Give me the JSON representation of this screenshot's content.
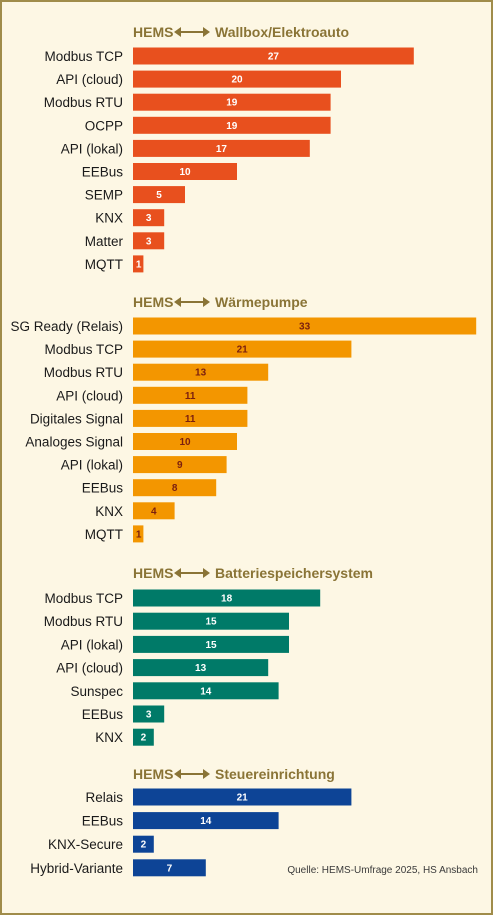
{
  "source": "Quelle: HEMS-Umfrage 2025, HS Ansbach",
  "chart_data": [
    {
      "type": "bar",
      "orientation": "horizontal",
      "title_left": "HEMS",
      "title_right": "Wallbox/Elektroauto",
      "color": "#e8501e",
      "label_color": "#ffffff",
      "categories": [
        "Modbus TCP",
        "API (cloud)",
        "Modbus RTU",
        "OCPP",
        "API (lokal)",
        "EEBus",
        "SEMP",
        "KNX",
        "Matter",
        "MQTT"
      ],
      "values": [
        27,
        20,
        19,
        19,
        17,
        10,
        5,
        3,
        3,
        1
      ]
    },
    {
      "type": "bar",
      "orientation": "horizontal",
      "title_left": "HEMS",
      "title_right": "Wärmepumpe",
      "color": "#f39600",
      "label_color": "#7a1f0f",
      "categories": [
        "SG Ready (Relais)",
        "Modbus TCP",
        "Modbus RTU",
        "API (cloud)",
        "Digitales Signal",
        "Analoges Signal",
        "API (lokal)",
        "EEBus",
        "KNX",
        "MQTT"
      ],
      "values": [
        33,
        21,
        13,
        11,
        11,
        10,
        9,
        8,
        4,
        1
      ]
    },
    {
      "type": "bar",
      "orientation": "horizontal",
      "title_left": "HEMS",
      "title_right": "Batteriespeichersystem",
      "color": "#007a68",
      "label_color": "#ffffff",
      "categories": [
        "Modbus TCP",
        "Modbus RTU",
        "API (lokal)",
        "API (cloud)",
        "Sunspec",
        "EEBus",
        "KNX"
      ],
      "values": [
        18,
        15,
        15,
        13,
        14,
        3,
        2
      ]
    },
    {
      "type": "bar",
      "orientation": "horizontal",
      "title_left": "HEMS",
      "title_right": "Steuereinrichtung",
      "color": "#0d4496",
      "label_color": "#ffffff",
      "categories": [
        "Relais",
        "EEBus",
        "KNX-Secure",
        "Hybrid-Variante"
      ],
      "values": [
        21,
        14,
        2,
        7
      ]
    }
  ]
}
